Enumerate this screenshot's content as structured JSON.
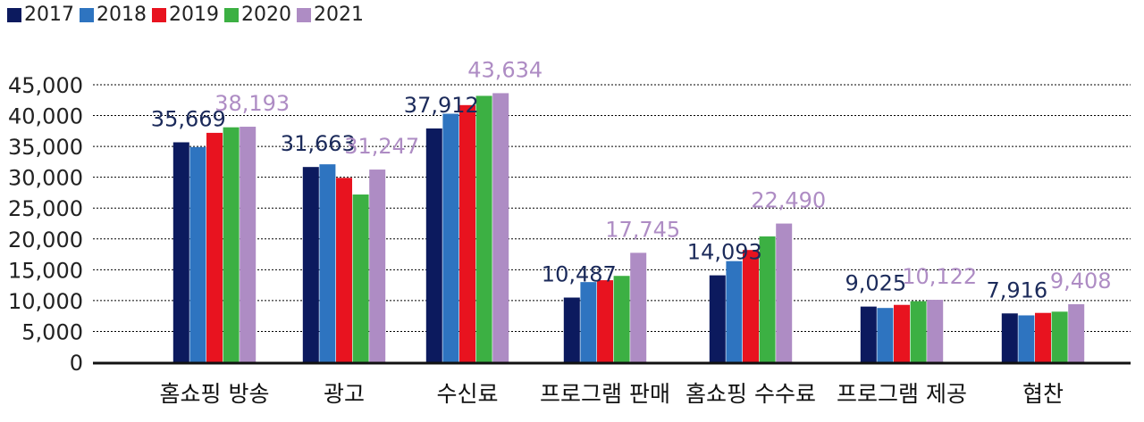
{
  "chart_data": {
    "type": "bar",
    "categories": [
      "홈쇼핑 방송",
      "광고",
      "수신료",
      "프로그램 판매",
      "홈쇼핑 수수료",
      "프로그램 제공",
      "협찬"
    ],
    "series": [
      {
        "name": "2017",
        "color": "#0c1a5e",
        "values": [
          35669,
          31663,
          37912,
          10487,
          14093,
          9025,
          7916
        ]
      },
      {
        "name": "2018",
        "color": "#2e74c0",
        "values": [
          34900,
          32100,
          40300,
          13000,
          16400,
          8800,
          7600
        ]
      },
      {
        "name": "2019",
        "color": "#e8131f",
        "values": [
          37200,
          29900,
          41700,
          13300,
          18200,
          9300,
          8000
        ]
      },
      {
        "name": "2020",
        "color": "#3cb043",
        "values": [
          38100,
          27200,
          43200,
          14000,
          20400,
          9900,
          8200
        ]
      },
      {
        "name": "2021",
        "color": "#ae8cc4",
        "values": [
          38193,
          31247,
          43634,
          17745,
          22490,
          10122,
          9408
        ]
      }
    ],
    "ylim": [
      0,
      45000
    ],
    "yticks": [
      "0",
      "5,000",
      "10,000",
      "15,000",
      "20,000",
      "25,000",
      "30,000",
      "35,000",
      "40,000",
      "45,000"
    ],
    "grid": true,
    "legend": "top-left",
    "data_labels": [
      {
        "category": "홈쇼핑 방송",
        "series": "2017",
        "text": "35,669"
      },
      {
        "category": "홈쇼핑 방송",
        "series": "2021",
        "text": "38,193"
      },
      {
        "category": "광고",
        "series": "2017",
        "text": "31,663"
      },
      {
        "category": "광고",
        "series": "2021",
        "text": "31,247"
      },
      {
        "category": "수신료",
        "series": "2017",
        "text": "37,912"
      },
      {
        "category": "수신료",
        "series": "2021",
        "text": "43,634"
      },
      {
        "category": "프로그램 판매",
        "series": "2017",
        "text": "10,487"
      },
      {
        "category": "프로그램 판매",
        "series": "2021",
        "text": "17,745"
      },
      {
        "category": "홈쇼핑 수수료",
        "series": "2017",
        "text": "14,093"
      },
      {
        "category": "홈쇼핑 수수료",
        "series": "2021",
        "text": "22,490"
      },
      {
        "category": "프로그램 제공",
        "series": "2017",
        "text": "9,025"
      },
      {
        "category": "프로그램 제공",
        "series": "2021",
        "text": "10,122"
      },
      {
        "category": "협찬",
        "series": "2017",
        "text": "7,916"
      },
      {
        "category": "협찬",
        "series": "2021",
        "text": "9,408"
      }
    ]
  }
}
